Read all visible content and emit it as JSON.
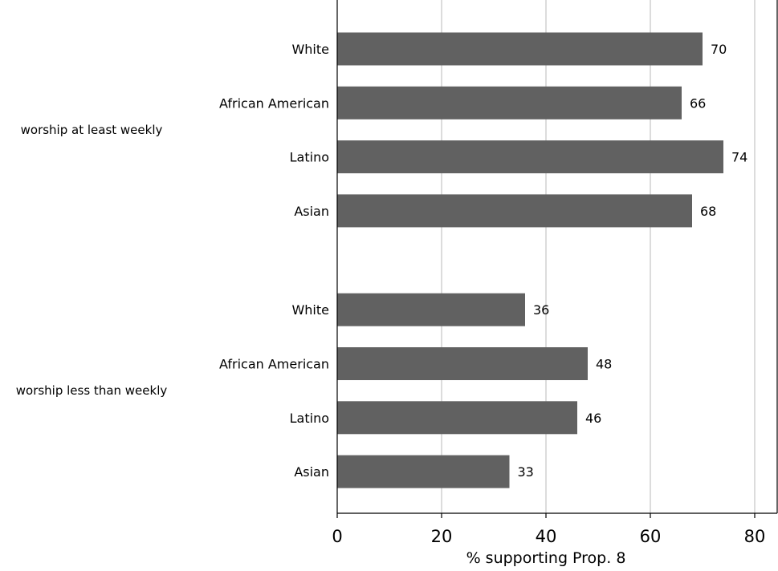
{
  "chart_data": {
    "type": "bar",
    "orientation": "horizontal",
    "xlabel": "% supporting Prop. 8",
    "xlim": [
      0,
      84
    ],
    "xticks": [
      0,
      20,
      40,
      60,
      80
    ],
    "grid": "vertical",
    "bar_color": "#616161",
    "grid_color": "#dcdcdc",
    "groups": [
      {
        "label": "worship at least weekly",
        "bars": [
          {
            "category": "White",
            "value": 70,
            "label": "70"
          },
          {
            "category": "African American",
            "value": 66,
            "label": "66"
          },
          {
            "category": "Latino",
            "value": 74,
            "label": "74"
          },
          {
            "category": "Asian",
            "value": 68,
            "label": "68"
          }
        ]
      },
      {
        "label": "worship less than weekly",
        "bars": [
          {
            "category": "White",
            "value": 36,
            "label": "36"
          },
          {
            "category": "African American",
            "value": 48,
            "label": "48"
          },
          {
            "category": "Latino",
            "value": 46,
            "label": "46"
          },
          {
            "category": "Asian",
            "value": 33,
            "label": "33"
          }
        ]
      }
    ]
  }
}
